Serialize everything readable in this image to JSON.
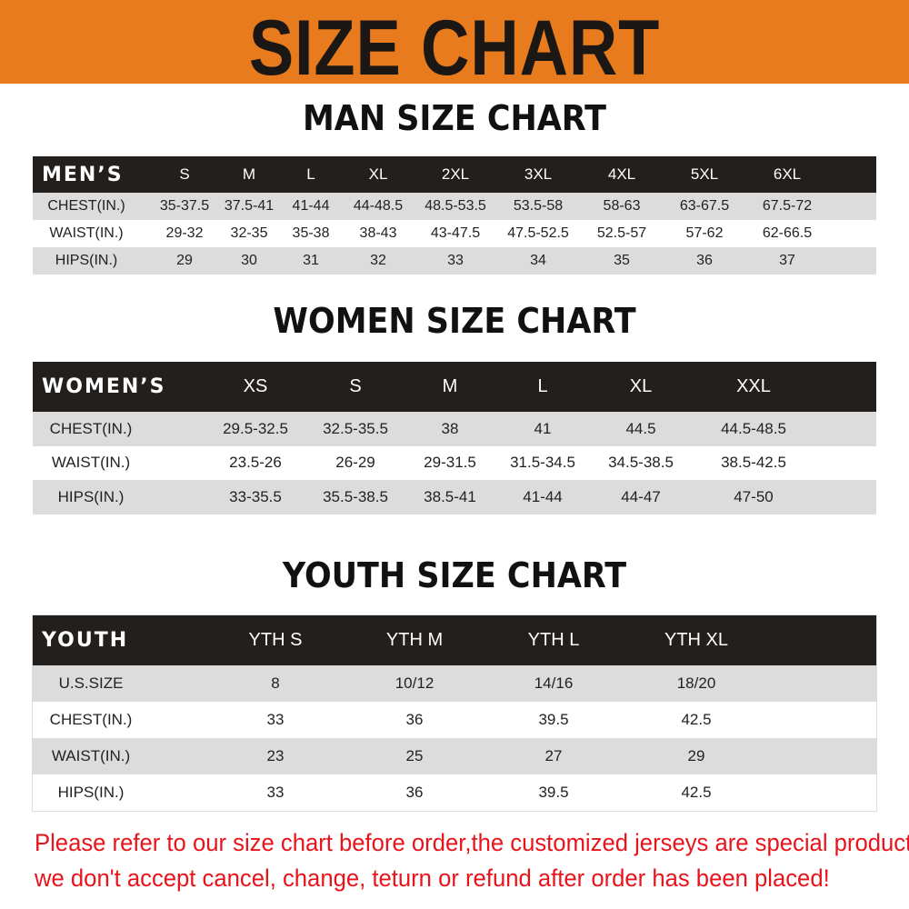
{
  "banner": {
    "title": "SIZE CHART",
    "color": "#e87b1e"
  },
  "men": {
    "title": "MAN SIZE CHART",
    "header": [
      "MEN’S",
      "S",
      "M",
      "L",
      "XL",
      "2XL",
      "3XL",
      "4XL",
      "5XL",
      "6XL"
    ],
    "rows": [
      [
        "CHEST(IN.)",
        "35-37.5",
        "37.5-41",
        "41-44",
        "44-48.5",
        "48.5-53.5",
        "53.5-58",
        "58-63",
        "63-67.5",
        "67.5-72"
      ],
      [
        "WAIST(IN.)",
        "29-32",
        "32-35",
        "35-38",
        "38-43",
        "43-47.5",
        "47.5-52.5",
        "52.5-57",
        "57-62",
        "62-66.5"
      ],
      [
        "HIPS(IN.)",
        "29",
        "30",
        "31",
        "32",
        "33",
        "34",
        "35",
        "36",
        "37"
      ]
    ]
  },
  "women": {
    "title": "WOMEN SIZE CHART",
    "header": [
      "WOMEN’S",
      "XS",
      "S",
      "M",
      "L",
      "XL",
      "XXL"
    ],
    "rows": [
      [
        "CHEST(IN.)",
        "29.5-32.5",
        "32.5-35.5",
        "38",
        "41",
        "44.5",
        "44.5-48.5"
      ],
      [
        "WAIST(IN.)",
        "23.5-26",
        "26-29",
        "29-31.5",
        "31.5-34.5",
        "34.5-38.5",
        "38.5-42.5"
      ],
      [
        "HIPS(IN.)",
        "33-35.5",
        "35.5-38.5",
        "38.5-41",
        "41-44",
        "44-47",
        "47-50"
      ]
    ]
  },
  "youth": {
    "title": "YOUTH SIZE CHART",
    "header": [
      "YOUTH",
      "YTH S",
      "YTH M",
      "YTH L",
      "YTH XL"
    ],
    "rows": [
      [
        "U.S.SIZE",
        "8",
        "10/12",
        "14/16",
        "18/20"
      ],
      [
        "CHEST(IN.)",
        "33",
        "36",
        "39.5",
        "42.5"
      ],
      [
        "WAIST(IN.)",
        "23",
        "25",
        "27",
        "29"
      ],
      [
        "HIPS(IN.)",
        "33",
        "36",
        "39.5",
        "42.5"
      ]
    ]
  },
  "notice": {
    "line1": "Please refer to our size chart before order,the customized jerseys are special products,",
    "line2": "we don't accept cancel, change, teturn or refund after order has been placed!",
    "color": "#e8141b"
  }
}
